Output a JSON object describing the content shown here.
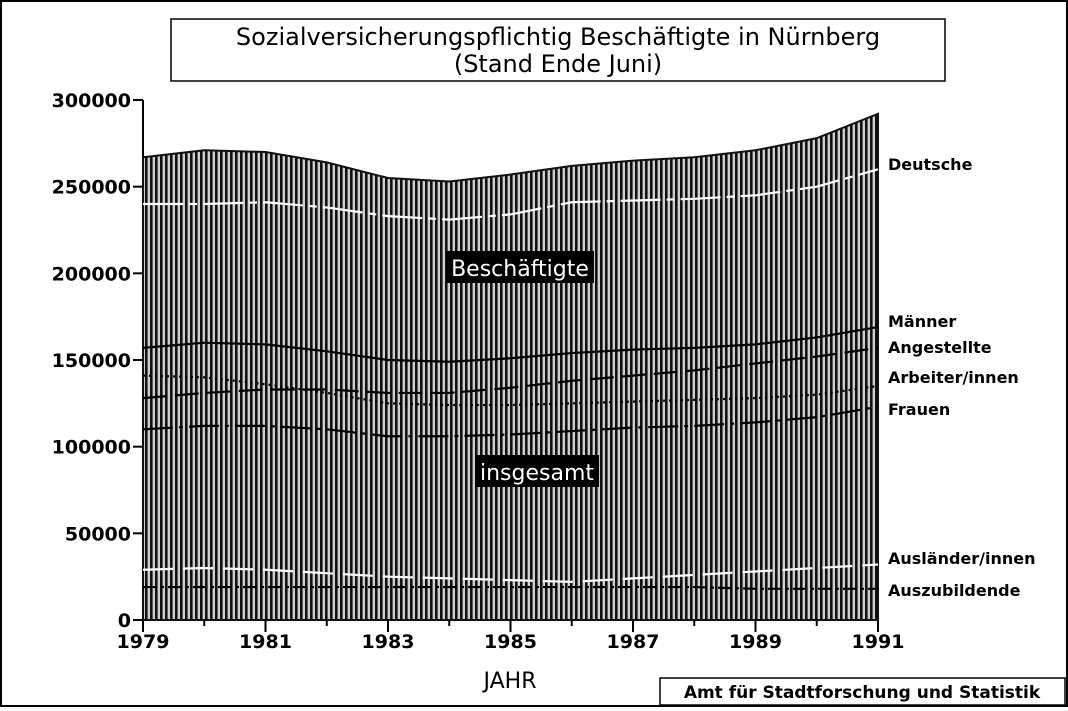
{
  "chart_data": {
    "type": "area_line",
    "title": "Sozialversicherungspflichtig Beschäftigte in Nürnberg",
    "subtitle": "(Stand Ende Juni)",
    "xlabel": "JAHR",
    "source": "Amt für Stadtforschung und Statistik",
    "x": [
      1979,
      1980,
      1981,
      1982,
      1983,
      1984,
      1985,
      1986,
      1987,
      1988,
      1989,
      1990,
      1991
    ],
    "xlim": [
      1979,
      1991
    ],
    "xticks": [
      1979,
      1981,
      1983,
      1985,
      1987,
      1989,
      1991
    ],
    "ylim": [
      0,
      300000
    ],
    "yticks": [
      0,
      50000,
      100000,
      150000,
      200000,
      250000,
      300000
    ],
    "area": {
      "labels": [
        "Beschäftigte",
        "insgesamt"
      ],
      "color": "#111111",
      "values": [
        267000,
        271000,
        270000,
        264000,
        255000,
        253000,
        257000,
        262000,
        265000,
        267000,
        271000,
        278000,
        292000
      ]
    },
    "series": [
      {
        "name": "Deutsche",
        "color": "#ffffff",
        "dash": "40 6 8 6",
        "values": [
          240000,
          240000,
          241000,
          238000,
          233000,
          231000,
          234000,
          241000,
          242000,
          243000,
          245000,
          250000,
          260000
        ]
      },
      {
        "name": "Männer",
        "color": "#000000",
        "dash": "none",
        "values": [
          157000,
          160000,
          159000,
          155000,
          150000,
          149000,
          151000,
          154000,
          156000,
          157000,
          159000,
          163000,
          169000
        ]
      },
      {
        "name": "Angestellte",
        "color": "#000000",
        "dash": "24 8",
        "values": [
          128000,
          131000,
          133000,
          133000,
          131000,
          131000,
          134000,
          138000,
          141000,
          144000,
          148000,
          152000,
          157000
        ]
      },
      {
        "name": "Arbeiter/innen",
        "color": "#000000",
        "dash": "2 4",
        "values": [
          141000,
          140000,
          136000,
          131000,
          125000,
          124000,
          124000,
          125000,
          126000,
          127000,
          128000,
          130000,
          135000
        ]
      },
      {
        "name": "Frauen",
        "color": "#000000",
        "dash": "30 6 4 6",
        "values": [
          110000,
          112000,
          112000,
          110000,
          106000,
          106000,
          107000,
          109000,
          111000,
          112000,
          114000,
          117000,
          123000
        ]
      },
      {
        "name": "Ausländer/innen",
        "color": "#ffffff",
        "dash": "30 10",
        "values": [
          29000,
          30000,
          29000,
          27000,
          25000,
          24000,
          23000,
          22000,
          24000,
          26000,
          28000,
          30000,
          32000
        ]
      },
      {
        "name": "Auszubildende",
        "color": "#000000",
        "dash": "14 4 3 4",
        "values": [
          19000,
          19000,
          19000,
          19000,
          19000,
          19000,
          19000,
          19000,
          19000,
          19000,
          18000,
          18000,
          18000
        ]
      }
    ]
  }
}
